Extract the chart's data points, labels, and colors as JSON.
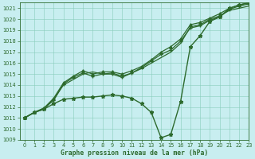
{
  "title": "Graphe pression niveau de la mer (hPa)",
  "bg_color": "#c8eef0",
  "grid_color": "#88ccbb",
  "line_color": "#2d6a2d",
  "xlim": [
    -0.5,
    23
  ],
  "ylim": [
    1009,
    1021.5
  ],
  "xticks": [
    0,
    1,
    2,
    3,
    4,
    5,
    6,
    7,
    8,
    9,
    10,
    11,
    12,
    13,
    14,
    15,
    16,
    17,
    18,
    19,
    20,
    21,
    22,
    23
  ],
  "yticks": [
    1009,
    1010,
    1011,
    1012,
    1013,
    1014,
    1015,
    1016,
    1017,
    1018,
    1019,
    1020,
    1021
  ],
  "series": [
    {
      "x": [
        0,
        1,
        2,
        3,
        4,
        5,
        6,
        7,
        8,
        9,
        10,
        11,
        12,
        13,
        14,
        15,
        16,
        17,
        18,
        19,
        20,
        21,
        22,
        23
      ],
      "y": [
        1011,
        1011.5,
        1011.8,
        1012.7,
        1014.0,
        1014.5,
        1015.0,
        1015.2,
        1015.0,
        1015.1,
        1014.8,
        1015.1,
        1015.5,
        1016.0,
        1016.5,
        1017.0,
        1017.8,
        1019.3,
        1019.5,
        1020.0,
        1020.3,
        1020.8,
        1021.0,
        1021.2
      ],
      "marker": "None",
      "markersize": 0,
      "lw": 0.9
    },
    {
      "x": [
        0,
        1,
        2,
        3,
        4,
        5,
        6,
        7,
        8,
        9,
        10,
        11,
        12,
        13,
        14,
        15,
        16,
        17,
        18,
        19,
        20,
        21,
        22,
        23
      ],
      "y": [
        1011,
        1011.5,
        1011.9,
        1012.8,
        1014.2,
        1014.8,
        1015.3,
        1015.0,
        1015.2,
        1015.2,
        1015.0,
        1015.3,
        1015.7,
        1016.3,
        1017.0,
        1017.5,
        1018.2,
        1019.5,
        1019.7,
        1020.1,
        1020.5,
        1021.0,
        1021.3,
        1021.5
      ],
      "marker": "^",
      "markersize": 2.5,
      "lw": 0.9
    },
    {
      "x": [
        0,
        1,
        2,
        3,
        4,
        5,
        6,
        7,
        8,
        9,
        10,
        11,
        12,
        13,
        14,
        15,
        16,
        17,
        18,
        19,
        20,
        21,
        22,
        23
      ],
      "y": [
        1011,
        1011.5,
        1011.9,
        1012.6,
        1014.1,
        1014.7,
        1015.1,
        1014.8,
        1015.0,
        1015.0,
        1014.7,
        1015.1,
        1015.6,
        1016.2,
        1016.8,
        1017.2,
        1018.0,
        1019.2,
        1019.4,
        1019.9,
        1020.2,
        1020.9,
        1021.2,
        1021.4
      ],
      "marker": "+",
      "markersize": 3,
      "lw": 0.9
    },
    {
      "x": [
        0,
        1,
        2,
        3,
        4,
        5,
        6,
        7,
        8,
        9,
        10,
        11,
        12,
        13,
        14,
        15,
        16,
        17,
        18,
        19,
        20,
        21,
        22,
        23
      ],
      "y": [
        1011,
        1011.5,
        1011.8,
        1012.3,
        1012.7,
        1012.8,
        1012.9,
        1012.9,
        1013.0,
        1013.1,
        1013.0,
        1012.8,
        1012.3,
        1011.5,
        1009.2,
        1009.5,
        1012.5,
        1017.5,
        1018.5,
        1019.8,
        1020.2,
        1021.0,
        1021.3,
        1021.5
      ],
      "marker": "*",
      "markersize": 3.5,
      "lw": 1.0
    }
  ],
  "xlabel_fontsize": 5.8,
  "tick_fontsize": 4.8,
  "tick_color": "#2d6a2d",
  "spine_color": "#2d6a2d"
}
